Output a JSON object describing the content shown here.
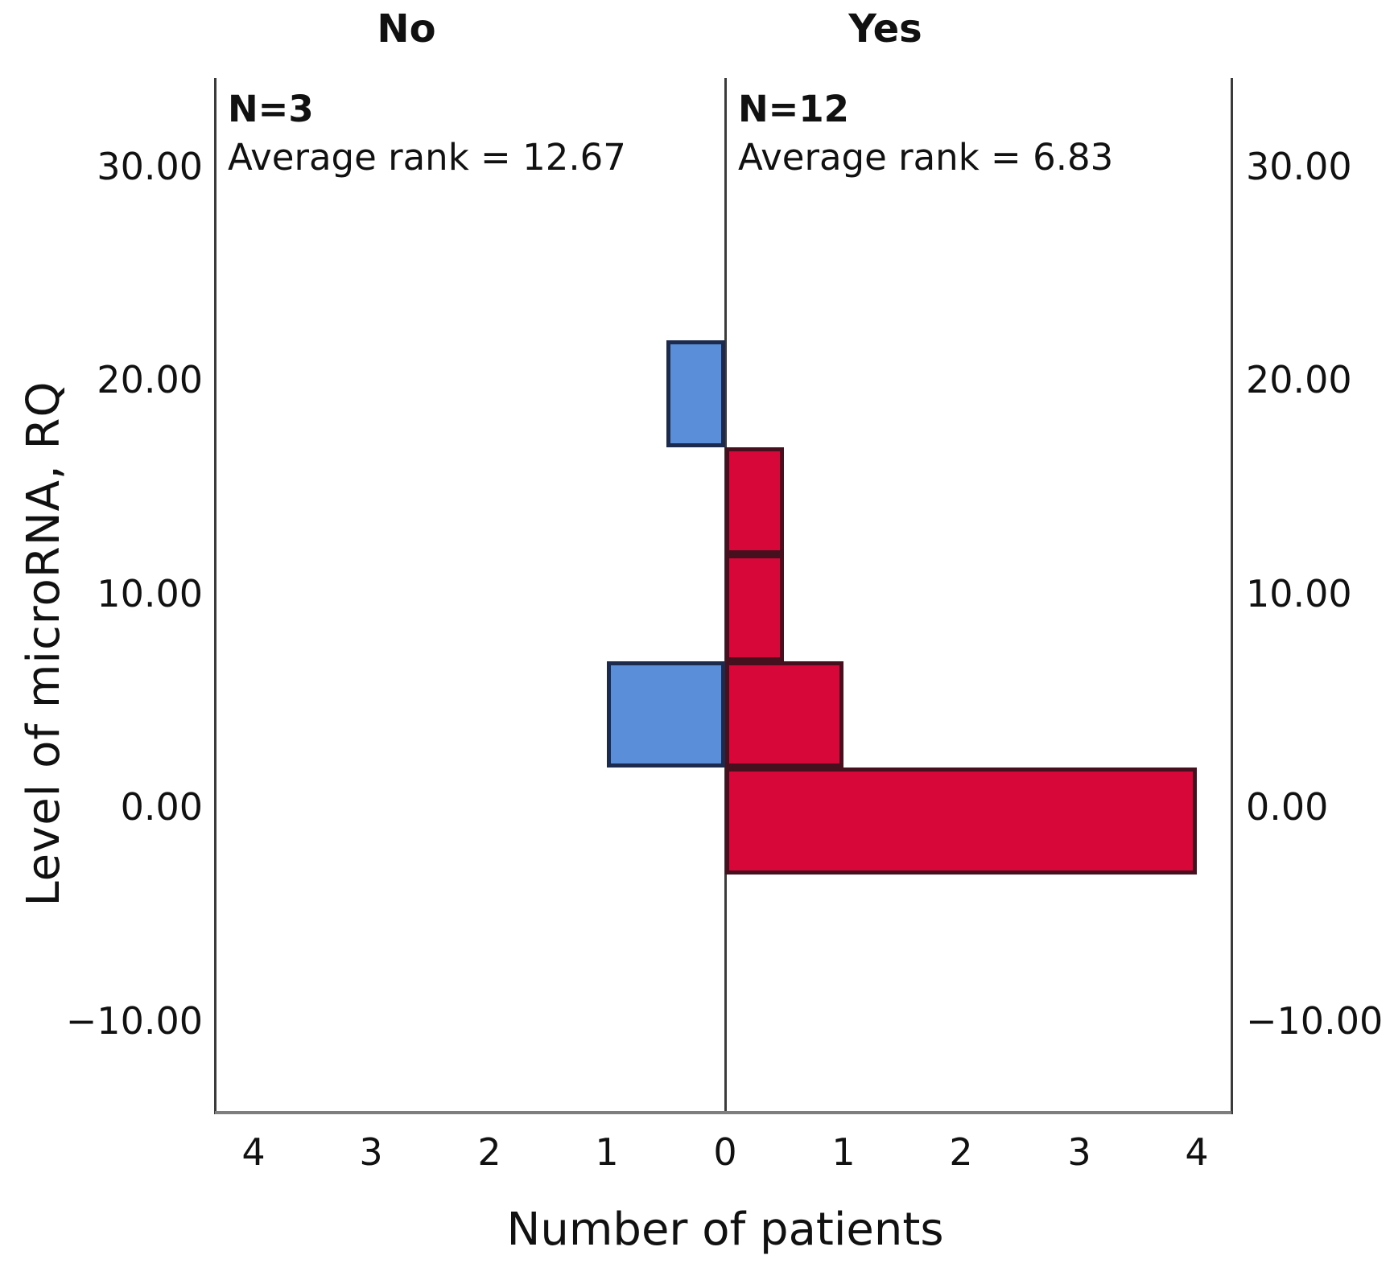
{
  "figure": {
    "panel_titles": {
      "left": "No",
      "right": "Yes"
    },
    "annotations": {
      "left": {
        "n": "N=3",
        "avg": "Average rank = 12.67"
      },
      "right": {
        "n": "N=12",
        "avg": "Average rank = 6.83"
      }
    },
    "xlabel": "Number of patients",
    "ylabel": "Level of microRNA, RQ"
  },
  "chart_data": {
    "type": "bar",
    "subtype": "population-pyramid-back-to-back-histogram",
    "title": "",
    "xlabel": "Number of patients",
    "ylabel": "Level of microRNA, RQ",
    "grid": false,
    "legend": false,
    "ylim": [
      -14,
      34
    ],
    "xlim_axis_units": [
      -4.3,
      4.3
    ],
    "patients_per_axis_unit": 2,
    "bin_width_rq": 5.0,
    "y_ticks": [
      {
        "value": 30,
        "label": "30.00"
      },
      {
        "value": 20,
        "label": "20.00"
      },
      {
        "value": 10,
        "label": "10.00"
      },
      {
        "value": 0,
        "label": "0.00"
      },
      {
        "value": -10,
        "label": "−10.00"
      }
    ],
    "x_ticks": [
      {
        "units": -4,
        "label": "4"
      },
      {
        "units": -3,
        "label": "3"
      },
      {
        "units": -2,
        "label": "2"
      },
      {
        "units": -1,
        "label": "1"
      },
      {
        "units": 0,
        "label": "0"
      },
      {
        "units": 1,
        "label": "1"
      },
      {
        "units": 2,
        "label": "2"
      },
      {
        "units": 3,
        "label": "3"
      },
      {
        "units": 4,
        "label": "4"
      }
    ],
    "series": [
      {
        "name": "No",
        "side": "left",
        "n": 3,
        "average_rank": 12.67,
        "fill": "#5b8ed8",
        "border": "#1c2b4d",
        "bins": [
          {
            "rq_from": 16.83,
            "rq_to": 21.83,
            "count": 1
          },
          {
            "rq_from": 1.83,
            "rq_to": 6.83,
            "count": 2
          }
        ]
      },
      {
        "name": "Yes",
        "side": "right",
        "n": 12,
        "average_rank": 6.83,
        "fill": "#d8073a",
        "border": "#47101f",
        "bins": [
          {
            "rq_from": 11.83,
            "rq_to": 16.83,
            "count": 1
          },
          {
            "rq_from": 6.83,
            "rq_to": 11.83,
            "count": 1
          },
          {
            "rq_from": 1.83,
            "rq_to": 6.83,
            "count": 2
          },
          {
            "rq_from": -3.17,
            "rq_to": 1.83,
            "count": 8
          }
        ]
      }
    ]
  },
  "colors": {
    "axis_line": "#3b3b3b",
    "frame_line": "#7e7e7e",
    "text": "#111111",
    "background": "#ffffff"
  }
}
